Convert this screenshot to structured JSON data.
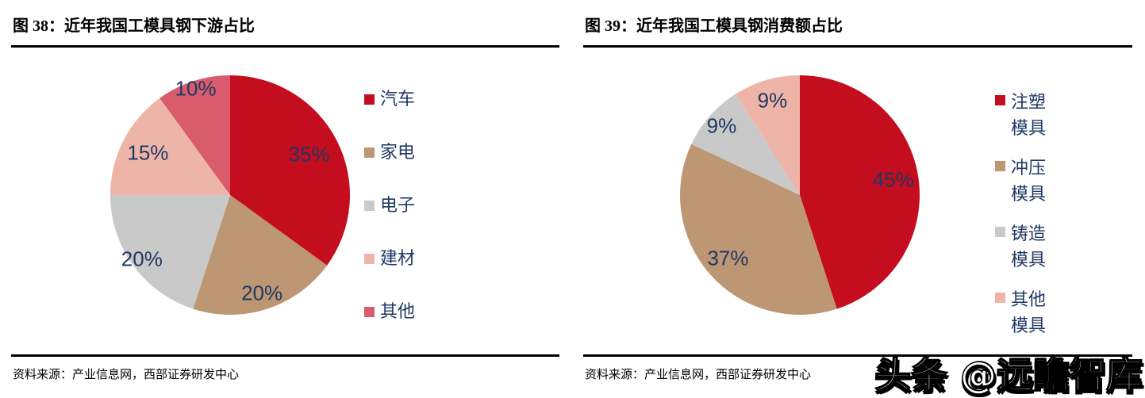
{
  "panels": [
    {
      "title": "图 38：近年我国工模具钢下游占比",
      "source": "资料来源：产业信息网，西部证券研发中心"
    },
    {
      "title": "图 39：近年我国工模具钢消费额占比",
      "source": "资料来源：产业信息网，西部证券研发中心"
    }
  ],
  "chart_data": [
    {
      "type": "pie",
      "title": "近年我国工模具钢下游占比",
      "labels": [
        "汽车",
        "家电",
        "电子",
        "建材",
        "其他"
      ],
      "values": [
        35,
        20,
        20,
        15,
        10
      ],
      "data_labels": [
        "35%",
        "20%",
        "20%",
        "15%",
        "10%"
      ],
      "unit": "%",
      "colors": [
        "#C40D1E",
        "#BD9674",
        "#C9C9C9",
        "#EFB4A8",
        "#D95C6C"
      ],
      "label_color": "#1F3864",
      "start_angle_deg": 0,
      "direction": "clockwise",
      "legend_position": "right",
      "legend_wrap_chars": 0
    },
    {
      "type": "pie",
      "title": "近年我国工模具钢消费额占比",
      "labels": [
        "注塑模具",
        "冲压模具",
        "铸造模具",
        "其他模具"
      ],
      "values": [
        45,
        37,
        9,
        9
      ],
      "data_labels": [
        "45%",
        "37%",
        "9%",
        "9%"
      ],
      "unit": "%",
      "colors": [
        "#C40D1E",
        "#BD9674",
        "#C9C9C9",
        "#EFB4A8"
      ],
      "label_color": "#1F3864",
      "start_angle_deg": 0,
      "direction": "clockwise",
      "legend_position": "right",
      "legend_wrap_chars": 2
    }
  ],
  "watermark": {
    "text": "头条 @远瞻智库",
    "fill_color": "#FFFFFF",
    "outline_color": "#000000"
  },
  "rule_color": "#000000"
}
